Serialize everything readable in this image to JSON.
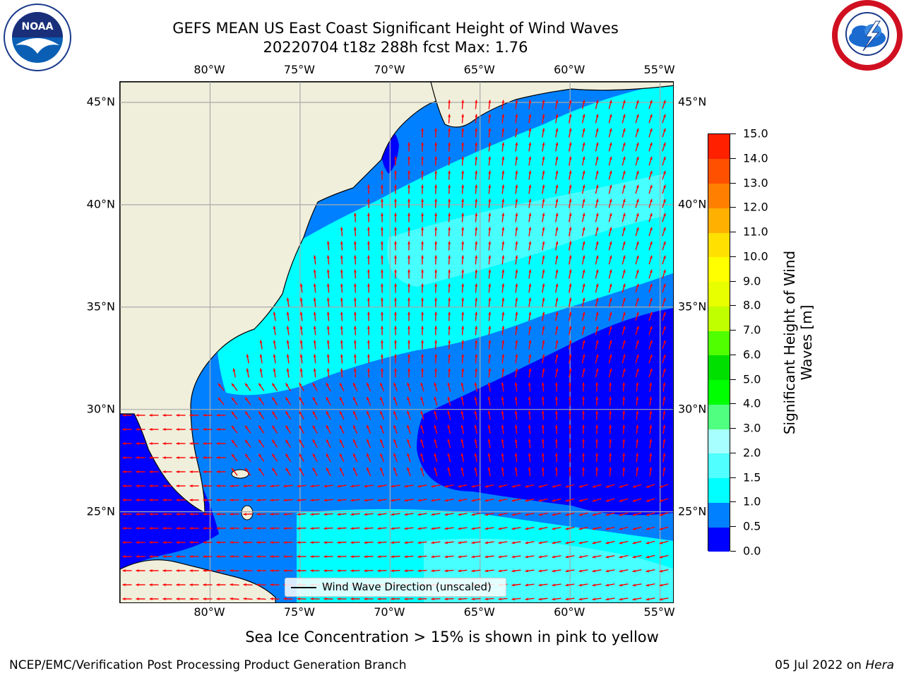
{
  "title": {
    "line1": "GEFS MEAN US East Coast Significant Height of Wind Waves",
    "line2": "20220704 t18z 288h fcst   Max: 1.76"
  },
  "logos": {
    "left": {
      "icon": "noaa-logo-icon",
      "text": "NOAA"
    },
    "right": {
      "icon": "nws-logo-icon"
    }
  },
  "map": {
    "projection": "lat-lon",
    "lon_range": [
      -85,
      -54.2
    ],
    "lat_range": [
      20.5,
      46
    ],
    "lon_ticks": [
      {
        "value": -80,
        "label": "80°W"
      },
      {
        "value": -75,
        "label": "75°W"
      },
      {
        "value": -70,
        "label": "70°W"
      },
      {
        "value": -65,
        "label": "65°W"
      },
      {
        "value": -60,
        "label": "60°W"
      },
      {
        "value": -55,
        "label": "55°W"
      }
    ],
    "lat_ticks": [
      {
        "value": 45,
        "label": "45°N"
      },
      {
        "value": 40,
        "label": "40°N"
      },
      {
        "value": 35,
        "label": "35°N"
      },
      {
        "value": 30,
        "label": "30°N"
      },
      {
        "value": 25,
        "label": "25°N"
      }
    ],
    "grid": true,
    "land_color": "#efefdc",
    "arrow_color": "#ff0000",
    "legend": {
      "label": "Wind Wave Direction (unscaled)",
      "placement": "bottom-center"
    }
  },
  "colorbar": {
    "title": "Significant Height of Wind Waves [m]",
    "levels": [
      "0.0",
      "0.5",
      "1.0",
      "1.5",
      "2.0",
      "3.0",
      "4.0",
      "5.0",
      "6.0",
      "7.0",
      "8.0",
      "9.0",
      "10.0",
      "11.0",
      "12.0",
      "13.0",
      "14.0",
      "15.0"
    ],
    "colors": [
      "#0000ff",
      "#0080ff",
      "#00ffff",
      "#50ffff",
      "#a8ffff",
      "#50ff80",
      "#00ff00",
      "#00e000",
      "#50ff00",
      "#c0ff00",
      "#e8ff00",
      "#ffff00",
      "#ffe000",
      "#ffb000",
      "#ff8000",
      "#ff5000",
      "#ff2000"
    ]
  },
  "sea_ice_note": "Sea Ice Concentration > 15% is shown in pink to yellow",
  "footer": {
    "left": "NCEP/EMC/Verification Post Processing Product Generation Branch",
    "date": "05 Jul 2022 on",
    "machine": "Hera"
  }
}
